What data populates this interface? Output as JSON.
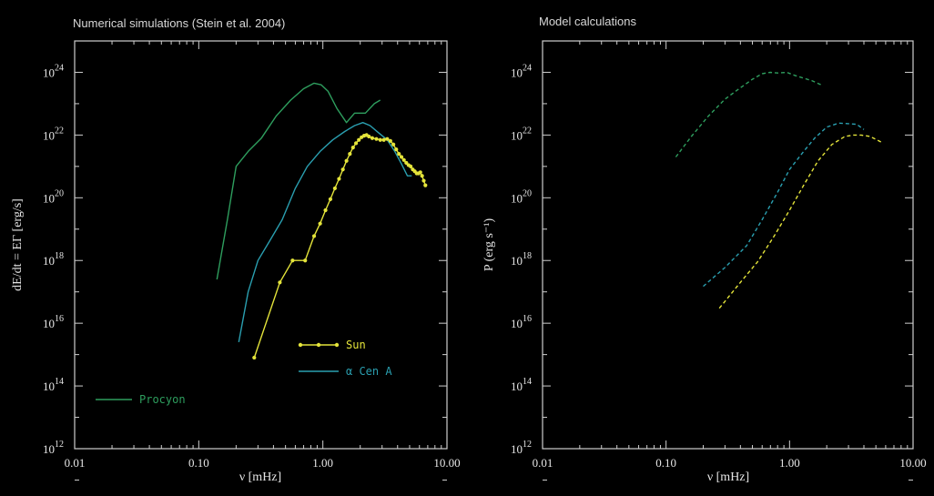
{
  "colors": {
    "procyon": "#2e9e5e",
    "alpha_cen_a": "#2a9fb0",
    "sun": "#e4e43a",
    "frame": "#cfcfcf",
    "text": "#e6e6e6"
  },
  "chart_data": [
    {
      "type": "line",
      "title": "Numerical simulations (Stein et al. 2004)",
      "xlabel": "ν [mHz]",
      "ylabel": "dE/dt = EΓ [erg/s]",
      "xscale": "log",
      "yscale": "log",
      "xlim": [
        0.01,
        10
      ],
      "ylim": [
        1000000000000.0,
        1e+25
      ],
      "xticks": [
        {
          "v": 0.01,
          "label": "0.01"
        },
        {
          "v": 0.1,
          "label": "0.10"
        },
        {
          "v": 1,
          "label": "1.00"
        },
        {
          "v": 10,
          "label": "10.00"
        }
      ],
      "yticks": [
        {
          "v": 1000000000000.0,
          "base": "10",
          "exp": "12"
        },
        {
          "v": 100000000000000.0,
          "base": "10",
          "exp": "14"
        },
        {
          "v": 1e+16,
          "base": "10",
          "exp": "16"
        },
        {
          "v": 1e+18,
          "base": "10",
          "exp": "18"
        },
        {
          "v": 1e+20,
          "base": "10",
          "exp": "20"
        },
        {
          "v": 1e+22,
          "base": "10",
          "exp": "22"
        },
        {
          "v": 1e+24,
          "base": "10",
          "exp": "24"
        }
      ],
      "legend_placement": "lower-left",
      "series": [
        {
          "name": "Procyon",
          "color_key": "procyon",
          "style": "solid",
          "x": [
            0.14,
            0.17,
            0.2,
            0.25,
            0.32,
            0.42,
            0.55,
            0.7,
            0.85,
            0.97,
            1.1,
            1.3,
            1.55,
            1.8,
            2.2,
            2.6,
            2.9
          ],
          "y": [
            2.5e+17,
            2e+19,
            1e+21,
            3e+21,
            8e+21,
            4e+22,
            1.3e+23,
            3e+23,
            4.5e+23,
            4e+23,
            2.5e+23,
            7e+22,
            2.5e+22,
            5e+22,
            5e+22,
            1e+23,
            1.3e+23
          ]
        },
        {
          "name": "α Cen A",
          "color_key": "alpha_cen_a",
          "style": "solid",
          "x": [
            0.21,
            0.25,
            0.3,
            0.37,
            0.47,
            0.6,
            0.75,
            0.95,
            1.2,
            1.5,
            1.8,
            2.1,
            2.4,
            2.8,
            3.3,
            3.8,
            4.3,
            4.8,
            5.2
          ],
          "y": [
            2500000000000000.0,
            1e+17,
            1e+18,
            4e+18,
            2e+19,
            2e+20,
            1e+21,
            3e+21,
            7e+21,
            1.3e+22,
            2e+22,
            2.5e+22,
            2e+22,
            1.2e+22,
            7e+21,
            3e+21,
            1.2e+21,
            5e+20,
            5e+20
          ]
        },
        {
          "name": "Sun",
          "color_key": "sun",
          "style": "solid-markers",
          "x": [
            0.28,
            0.45,
            0.57,
            0.72,
            0.85,
            0.95,
            1.05,
            1.15,
            1.25,
            1.35,
            1.45,
            1.55,
            1.65,
            1.75,
            1.85,
            1.95,
            2.05,
            2.15,
            2.25,
            2.35,
            2.5,
            2.7,
            2.9,
            3.1,
            3.3,
            3.5,
            3.7,
            3.9,
            4.1,
            4.3,
            4.5,
            4.7,
            4.9,
            5.1,
            5.3,
            5.5,
            5.7,
            5.9,
            6.1,
            6.3,
            6.5,
            6.7
          ],
          "y": [
            800000000000000.0,
            2e+17,
            1e+18,
            1e+18,
            6e+18,
            1.5e+19,
            4e+19,
            9e+19,
            2e+20,
            4e+20,
            8e+20,
            1.5e+21,
            2.5e+21,
            4e+21,
            5.5e+21,
            7e+21,
            8.5e+21,
            9.5e+21,
            1e+22,
            9e+21,
            8e+21,
            7.5e+21,
            7e+21,
            7e+21,
            7.5e+21,
            6.5e+21,
            5e+21,
            3.5e+21,
            2.5e+21,
            2e+21,
            1.6e+21,
            1.3e+21,
            1.1e+21,
            1e+21,
            8e+20,
            7e+20,
            6e+20,
            6e+20,
            6.5e+20,
            5e+20,
            3.5e+20,
            2.5e+20
          ]
        }
      ]
    },
    {
      "type": "line",
      "title": "Model calculations",
      "xlabel": "ν [mHz]",
      "ylabel": "P (erg s⁻¹)",
      "xscale": "log",
      "yscale": "log",
      "xlim": [
        0.01,
        10
      ],
      "ylim": [
        1000000000000.0,
        1e+25
      ],
      "xticks": [
        {
          "v": 0.01,
          "label": "0.01"
        },
        {
          "v": 0.1,
          "label": "0.10"
        },
        {
          "v": 1,
          "label": "1.00"
        },
        {
          "v": 10,
          "label": "10.00"
        }
      ],
      "yticks": [
        {
          "v": 1000000000000.0,
          "base": "10",
          "exp": "12"
        },
        {
          "v": 100000000000000.0,
          "base": "10",
          "exp": "14"
        },
        {
          "v": 1e+16,
          "base": "10",
          "exp": "16"
        },
        {
          "v": 1e+18,
          "base": "10",
          "exp": "18"
        },
        {
          "v": 1e+20,
          "base": "10",
          "exp": "20"
        },
        {
          "v": 1e+22,
          "base": "10",
          "exp": "22"
        },
        {
          "v": 1e+24,
          "base": "10",
          "exp": "24"
        }
      ],
      "series": [
        {
          "color_key": "procyon",
          "style": "dashed",
          "x": [
            0.12,
            0.16,
            0.22,
            0.3,
            0.4,
            0.5,
            0.6,
            0.7,
            0.8,
            0.95,
            1.1,
            1.3,
            1.5,
            1.8
          ],
          "y": [
            2e+21,
            9e+21,
            4e+22,
            1.4e+23,
            3.2e+23,
            6e+23,
            9e+23,
            1e+24,
            9.5e+23,
            1e+24,
            8e+23,
            6.5e+23,
            5.5e+23,
            4e+23
          ]
        },
        {
          "color_key": "alpha_cen_a",
          "style": "dashed",
          "x": [
            0.2,
            0.3,
            0.45,
            0.6,
            0.8,
            1.0,
            1.3,
            1.6,
            2.0,
            2.5,
            3.0,
            3.5,
            4.0
          ],
          "y": [
            1.5e+17,
            6e+17,
            3e+18,
            2e+19,
            1.5e+20,
            8e+20,
            3e+21,
            8e+21,
            1.8e+22,
            2.4e+22,
            2.3e+22,
            2.2e+22,
            1.5e+22
          ]
        },
        {
          "color_key": "sun",
          "style": "dashed",
          "x": [
            0.27,
            0.4,
            0.55,
            0.75,
            1.0,
            1.3,
            1.7,
            2.2,
            2.8,
            3.3,
            3.8,
            4.5,
            5.5
          ],
          "y": [
            3e+16,
            2e+17,
            9e+17,
            6e+18,
            4e+19,
            2.5e+20,
            1.5e+21,
            5e+21,
            9e+21,
            1e+22,
            1e+22,
            9e+21,
            6e+21
          ]
        }
      ]
    }
  ]
}
